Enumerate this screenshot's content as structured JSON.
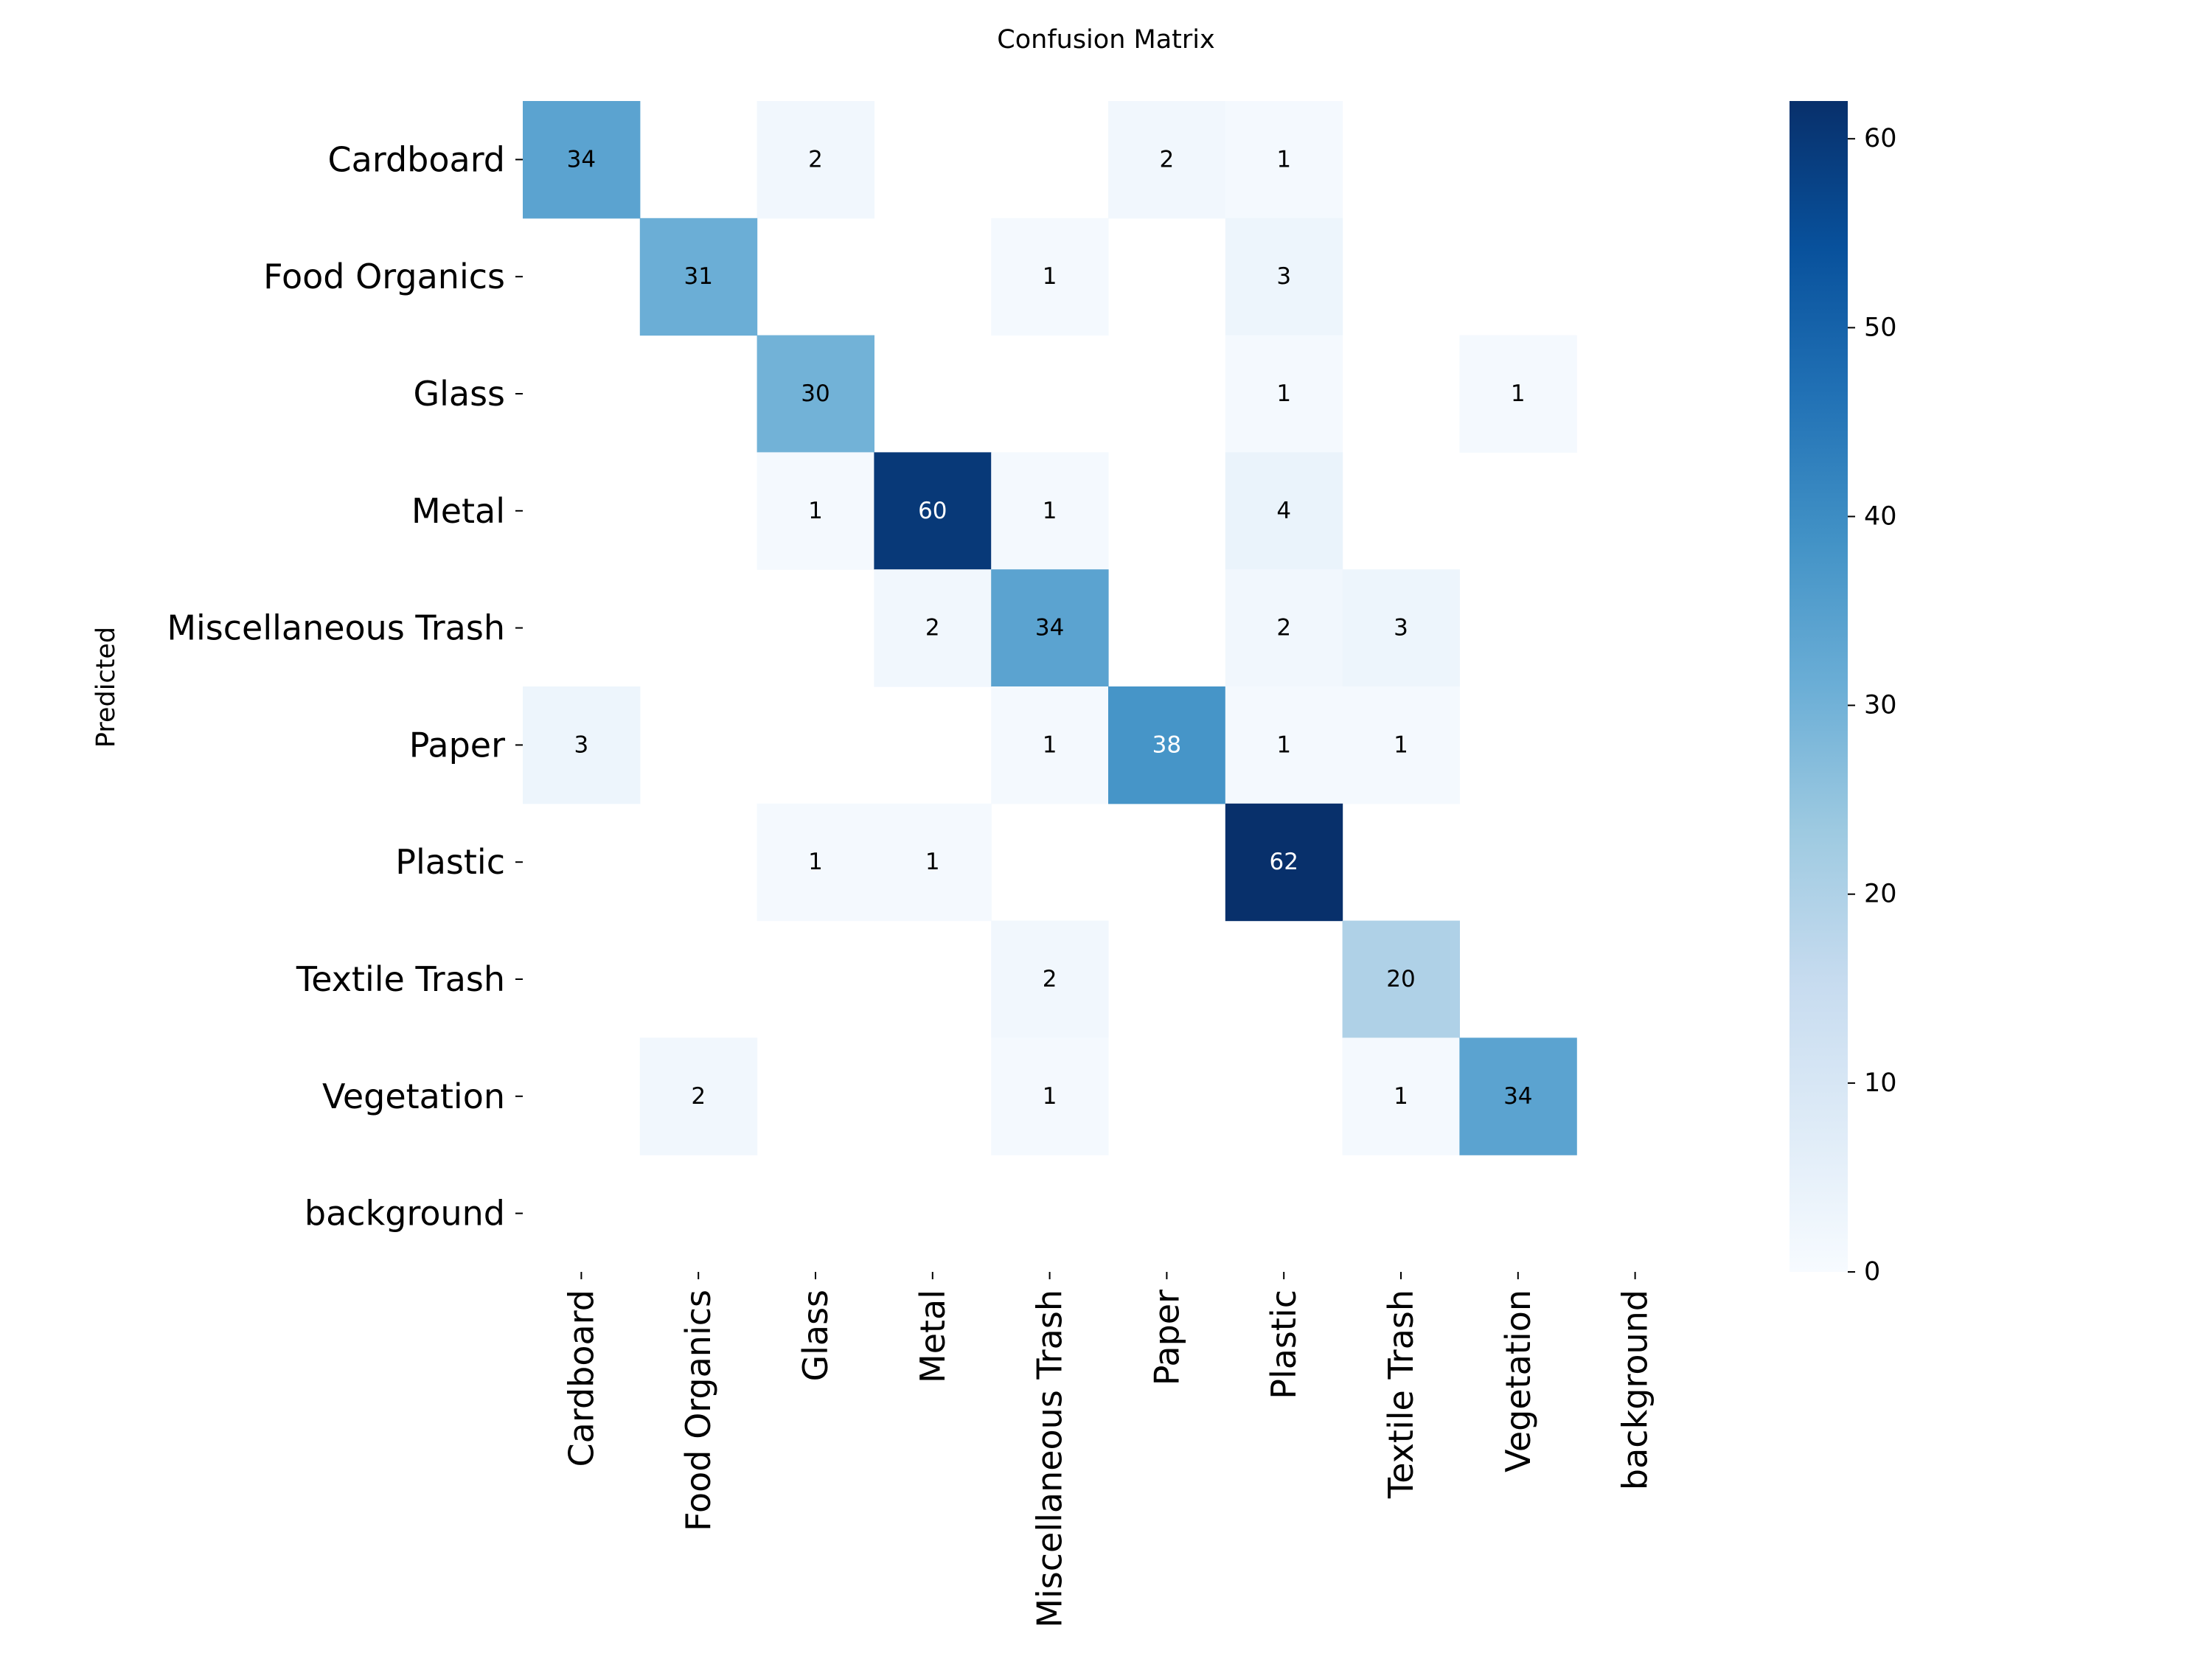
{
  "chart_data": {
    "type": "heatmap",
    "title": "Confusion Matrix",
    "xlabel": "",
    "ylabel": "Predicted",
    "x_categories": [
      "Cardboard",
      "Food Organics",
      "Glass",
      "Metal",
      "Miscellaneous Trash",
      "Paper",
      "Plastic",
      "Textile Trash",
      "Vegetation",
      "background"
    ],
    "y_categories": [
      "Cardboard",
      "Food Organics",
      "Glass",
      "Metal",
      "Miscellaneous Trash",
      "Paper",
      "Plastic",
      "Textile Trash",
      "Vegetation",
      "background"
    ],
    "matrix": [
      [
        34,
        0,
        2,
        0,
        0,
        2,
        1,
        0,
        0,
        0
      ],
      [
        0,
        31,
        0,
        0,
        1,
        0,
        3,
        0,
        0,
        0
      ],
      [
        0,
        0,
        30,
        0,
        0,
        0,
        1,
        0,
        1,
        0
      ],
      [
        0,
        0,
        1,
        60,
        1,
        0,
        4,
        0,
        0,
        0
      ],
      [
        0,
        0,
        0,
        2,
        34,
        0,
        2,
        3,
        0,
        0
      ],
      [
        3,
        0,
        0,
        0,
        1,
        38,
        1,
        1,
        0,
        0
      ],
      [
        0,
        0,
        1,
        1,
        0,
        0,
        62,
        0,
        0,
        0
      ],
      [
        0,
        0,
        0,
        0,
        2,
        0,
        0,
        20,
        0,
        0
      ],
      [
        0,
        2,
        0,
        0,
        1,
        0,
        0,
        1,
        34,
        0
      ],
      [
        0,
        0,
        0,
        0,
        0,
        0,
        0,
        0,
        0,
        0
      ]
    ],
    "zero_cells_shown": false,
    "colormap": "Blues",
    "value_range": [
      0,
      62
    ],
    "colorbar": {
      "ticks": [
        "0",
        "10",
        "20",
        "30",
        "40",
        "50",
        "60"
      ],
      "tick_values": [
        0,
        10,
        20,
        30,
        40,
        50,
        60
      ]
    },
    "grid": false,
    "legend": "colorbar right"
  }
}
